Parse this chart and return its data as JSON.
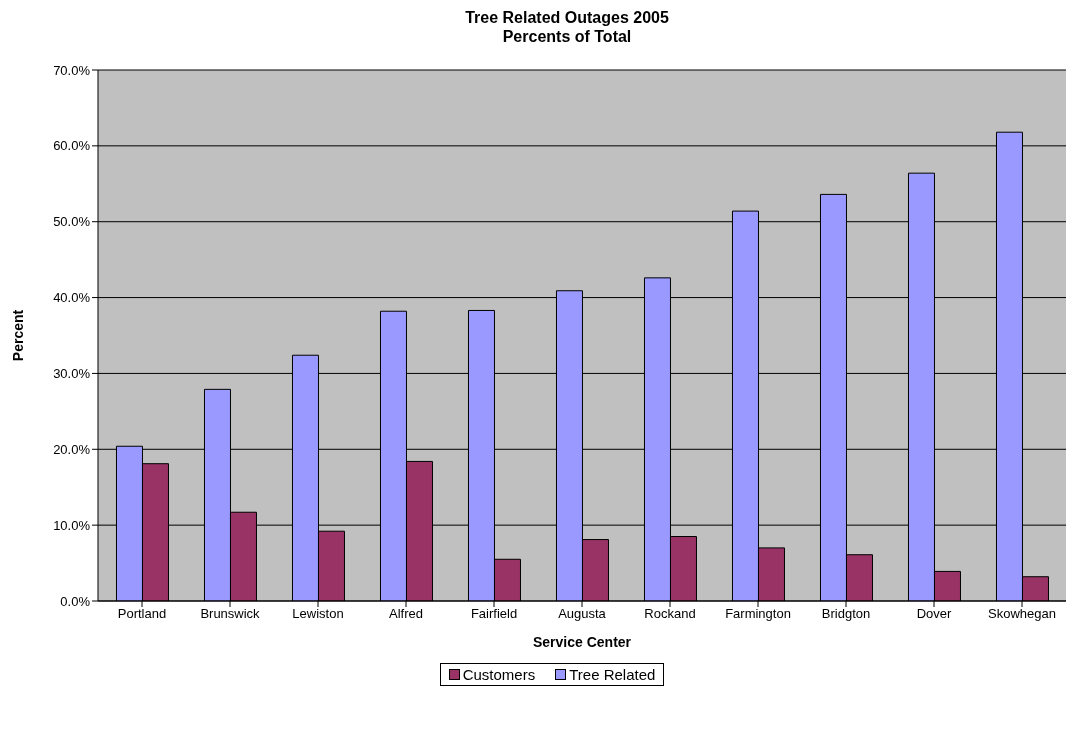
{
  "chart_data": {
    "type": "bar",
    "title": "Tree Related Outages 2005\nPercents of Total",
    "xlabel": "Service Center",
    "ylabel": "Percent",
    "categories": [
      "Portland",
      "Brunswick",
      "Lewiston",
      "Alfred",
      "Fairfield",
      "Augusta",
      "Rockand",
      "Farmington",
      "Bridgton",
      "Dover",
      "Skowhegan"
    ],
    "series": [
      {
        "name": "Tree Related",
        "color": "#9999ff",
        "values": [
          20.4,
          27.9,
          32.4,
          38.2,
          38.3,
          40.9,
          42.6,
          51.4,
          53.6,
          56.4,
          61.8
        ]
      },
      {
        "name": "Customers",
        "color": "#993366",
        "values": [
          18.1,
          11.7,
          9.2,
          18.4,
          5.5,
          8.1,
          8.5,
          7.0,
          6.1,
          3.9,
          3.2
        ]
      }
    ],
    "ylim": [
      0,
      70
    ],
    "yticks": [
      {
        "value": 0,
        "label": "0.0%"
      },
      {
        "value": 10,
        "label": "10.0%"
      },
      {
        "value": 20,
        "label": "20.0%"
      },
      {
        "value": 30,
        "label": "30.0%"
      },
      {
        "value": 40,
        "label": "40.0%"
      },
      {
        "value": 50,
        "label": "50.0%"
      },
      {
        "value": 60,
        "label": "60.0%"
      },
      {
        "value": 70,
        "label": "70.0%"
      }
    ],
    "grid": "y",
    "legend": "bottom"
  }
}
